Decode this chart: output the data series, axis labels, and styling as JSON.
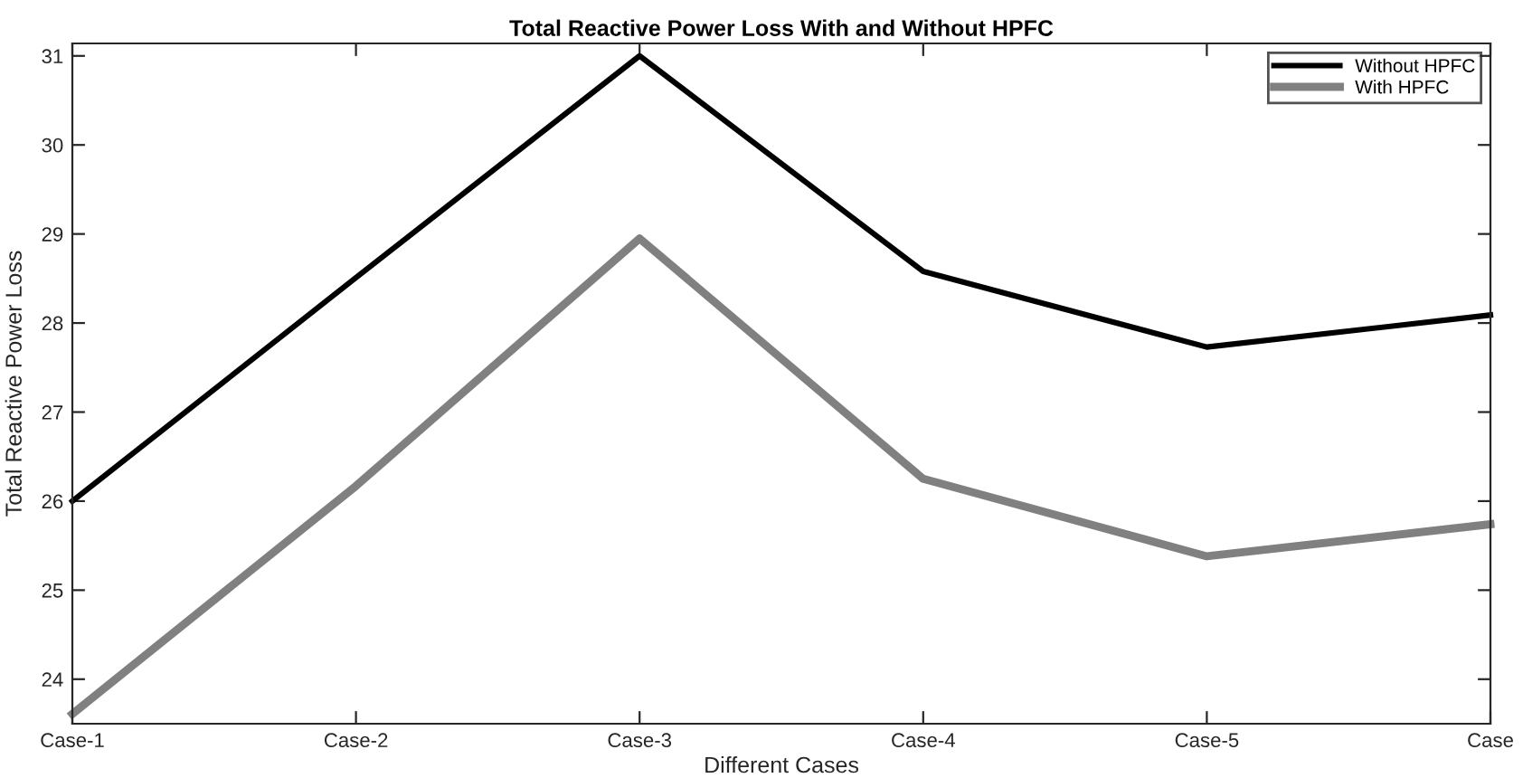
{
  "chart_data": {
    "type": "line",
    "title": "Total Reactive Power Loss With and Without HPFC",
    "xlabel": "Different Cases",
    "ylabel": "Total Reactive Power Loss",
    "categories": [
      "Case-1",
      "Case-2",
      "Case-3",
      "Case-4",
      "Case-5",
      "Case"
    ],
    "ylim": [
      23.5,
      31.14
    ],
    "yticks": [
      24,
      25,
      26,
      27,
      28,
      29,
      30,
      31
    ],
    "grid": false,
    "legend": "top right",
    "marker": "none",
    "line_style": "solid",
    "series": [
      {
        "name": "Without HPFC",
        "color": "#000000",
        "values": [
          26.0,
          28.51,
          31.0,
          28.58,
          27.73,
          28.09
        ]
      },
      {
        "name": "With HPFC",
        "color": "#808080",
        "values": [
          23.61,
          26.17,
          28.95,
          26.25,
          25.38,
          25.74
        ]
      }
    ]
  }
}
